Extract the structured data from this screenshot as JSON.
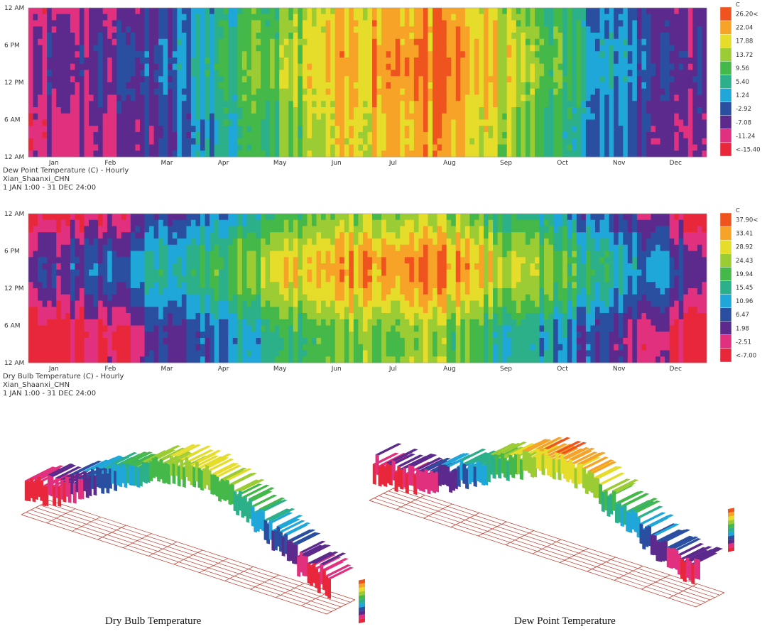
{
  "charts": [
    {
      "id": "dew",
      "type": "heatmap",
      "title": "Dew Point Temperature (C) - Hourly",
      "location": "Xian_Shaanxi_CHN",
      "period": "1 JAN 1:00 - 31 DEC 24:00",
      "unit": "C",
      "y_ticks": [
        "12 AM",
        "6 PM",
        "12 PM",
        "6 AM",
        "12 AM"
      ],
      "x_ticks": [
        "Jan",
        "Feb",
        "Mar",
        "Apr",
        "May",
        "Jun",
        "Jul",
        "Aug",
        "Sep",
        "Oct",
        "Nov",
        "Dec"
      ],
      "legend_labels": [
        "26.20<",
        "22.04",
        "17.88",
        "13.72",
        "9.56",
        "5.40",
        "1.24",
        "-2.92",
        "-7.08",
        "-11.24",
        "<-15.40"
      ],
      "monthly_mean": [
        -7.5,
        -6.0,
        -2.0,
        5.0,
        11.0,
        17.0,
        21.5,
        20.5,
        14.0,
        7.0,
        -1.0,
        -6.0
      ],
      "value_range": [
        -15.4,
        26.2
      ],
      "diurnal_amplitude": 1.5
    },
    {
      "id": "dry",
      "type": "heatmap",
      "title": "Dry Bulb Temperature (C) - Hourly",
      "location": "Xian_Shaanxi_CHN",
      "period": "1 JAN 1:00 - 31 DEC 24:00",
      "unit": "C",
      "y_ticks": [
        "12 AM",
        "6 PM",
        "12 PM",
        "6 AM",
        "12 AM"
      ],
      "x_ticks": [
        "Jan",
        "Feb",
        "Mar",
        "Apr",
        "May",
        "Jun",
        "Jul",
        "Aug",
        "Sep",
        "Oct",
        "Nov",
        "Dec"
      ],
      "legend_labels": [
        "37.90<",
        "33.41",
        "28.92",
        "24.43",
        "19.94",
        "15.45",
        "10.96",
        "6.47",
        "1.98",
        "-2.51",
        "<-7.00"
      ],
      "monthly_mean": [
        -0.5,
        2.5,
        9.0,
        15.5,
        20.5,
        26.0,
        28.0,
        26.5,
        20.5,
        14.5,
        7.0,
        1.0
      ],
      "value_range": [
        -7.0,
        37.9
      ],
      "diurnal_amplitude": 5.5
    }
  ],
  "surface_labels": [
    "Dry Bulb Temperature",
    "Dew Point Temperature"
  ],
  "colors": {
    "scale": [
      "#e8283a",
      "#e0307e",
      "#5c2a8c",
      "#2b4fa0",
      "#1ea7d8",
      "#2cb08a",
      "#45b84a",
      "#9ccc34",
      "#e6dc2a",
      "#f6a328",
      "#f0541e"
    ]
  }
}
